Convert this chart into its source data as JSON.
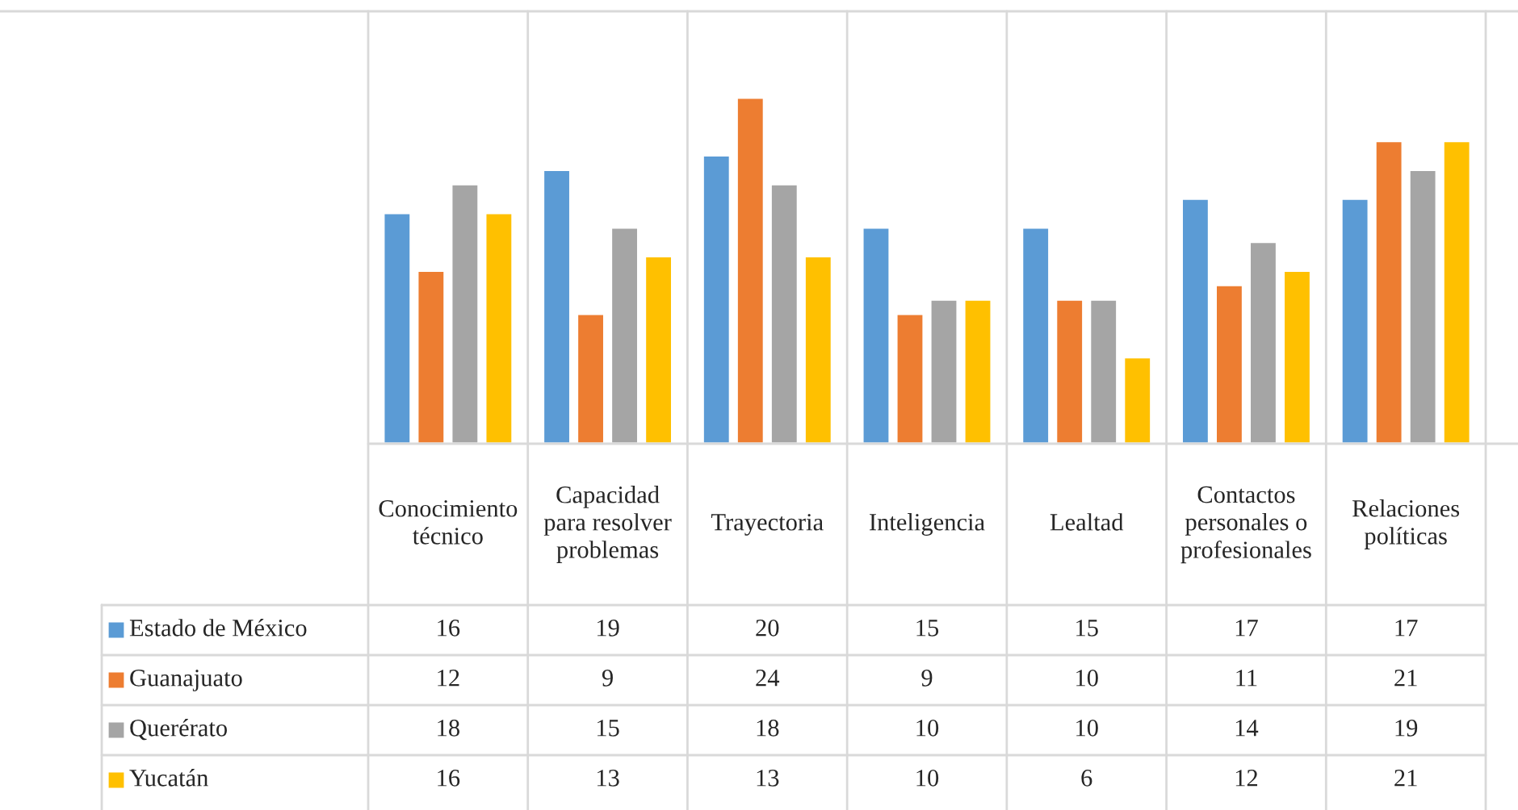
{
  "chart_data": {
    "type": "bar",
    "categories": [
      "Conocimiento técnico",
      "Capacidad para resolver problemas",
      "Trayectoria",
      "Inteligencia",
      "Lealtad",
      "Contactos personales o profesionales",
      "Relaciones políticas"
    ],
    "series": [
      {
        "name": "Estado de México",
        "color": "#5b9bd5",
        "values": [
          16,
          19,
          20,
          15,
          15,
          17,
          17
        ]
      },
      {
        "name": "Guanajuato",
        "color": "#ed7d31",
        "values": [
          12,
          9,
          24,
          9,
          10,
          11,
          21
        ]
      },
      {
        "name": "Querérato",
        "color": "#a5a5a5",
        "values": [
          18,
          15,
          18,
          10,
          10,
          14,
          19
        ]
      },
      {
        "name": "Yucatán",
        "color": "#ffc000",
        "values": [
          16,
          13,
          13,
          10,
          6,
          12,
          21
        ]
      }
    ],
    "ylim": [
      0,
      30
    ],
    "data_labels": true,
    "legend": "left",
    "grid": "x"
  }
}
